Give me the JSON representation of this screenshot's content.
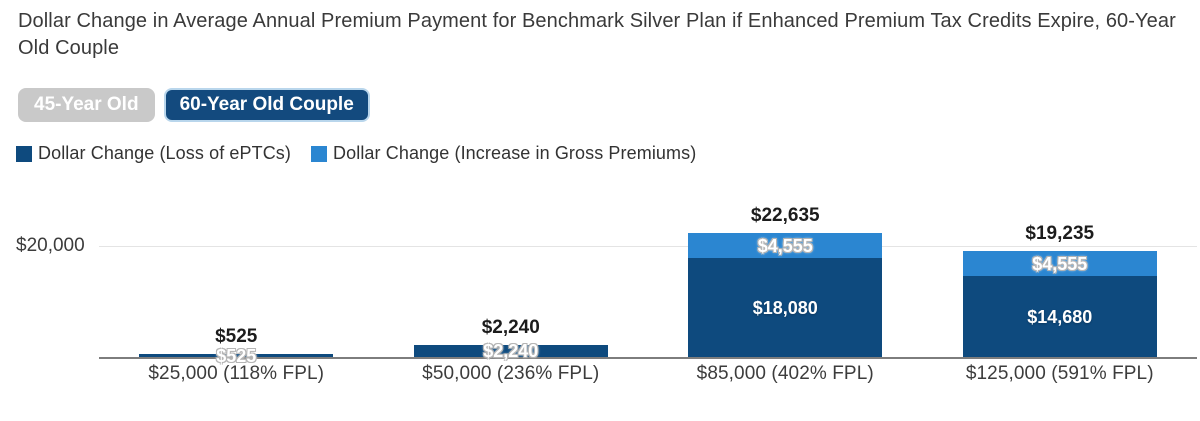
{
  "header": {
    "title": "Dollar Change in Average Annual Premium Payment for Benchmark Silver Plan if Enhanced Premium Tax Credits Expire, 60-Year Old Couple"
  },
  "toggles": [
    {
      "label": "45-Year Old",
      "active": false
    },
    {
      "label": "60-Year Old Couple",
      "active": true
    }
  ],
  "legend": {
    "items": [
      {
        "label": "Dollar Change (Loss of ePTCs)",
        "color": "#0e4a7e"
      },
      {
        "label": "Dollar Change (Increase in Gross Premiums)",
        "color": "#2b86d1"
      }
    ]
  },
  "colors": {
    "dark_series": "#0e4a7e",
    "light_series": "#2b86d1",
    "active_toggle": "#134a7e",
    "inactive_toggle": "#c9c9c9",
    "gridline": "#e4e4e4",
    "axis_line": "#7d7d7d"
  },
  "chart_data": {
    "type": "bar",
    "stacked": true,
    "title": "Dollar Change in Average Annual Premium Payment for Benchmark Silver Plan if Enhanced Premium Tax Credits Expire, 60-Year Old Couple",
    "categories": [
      "$25,000 (118% FPL)",
      "$50,000 (236% FPL)",
      "$85,000 (402% FPL)",
      "$125,000 (591% FPL)"
    ],
    "series": [
      {
        "name": "Dollar Change (Loss of ePTCs)",
        "color": "#0e4a7e",
        "values": [
          525,
          2240,
          18080,
          14680
        ],
        "labels": [
          "$525",
          "$2,240",
          "$18,080",
          "$14,680"
        ]
      },
      {
        "name": "Dollar Change (Increase in Gross Premiums)",
        "color": "#2b86d1",
        "values": [
          0,
          0,
          4555,
          4555
        ],
        "labels": [
          "",
          "",
          "$4,555",
          "$4,555"
        ]
      }
    ],
    "totals": {
      "values": [
        525,
        2240,
        22635,
        19235
      ],
      "labels": [
        "$525",
        "$2,240",
        "$22,635",
        "$19,235"
      ]
    },
    "y_axis": {
      "tick_label": "$20,000",
      "tick_value": 20000,
      "ylim": [
        0,
        23500
      ],
      "grid": true
    },
    "legend_position": "top-left"
  }
}
